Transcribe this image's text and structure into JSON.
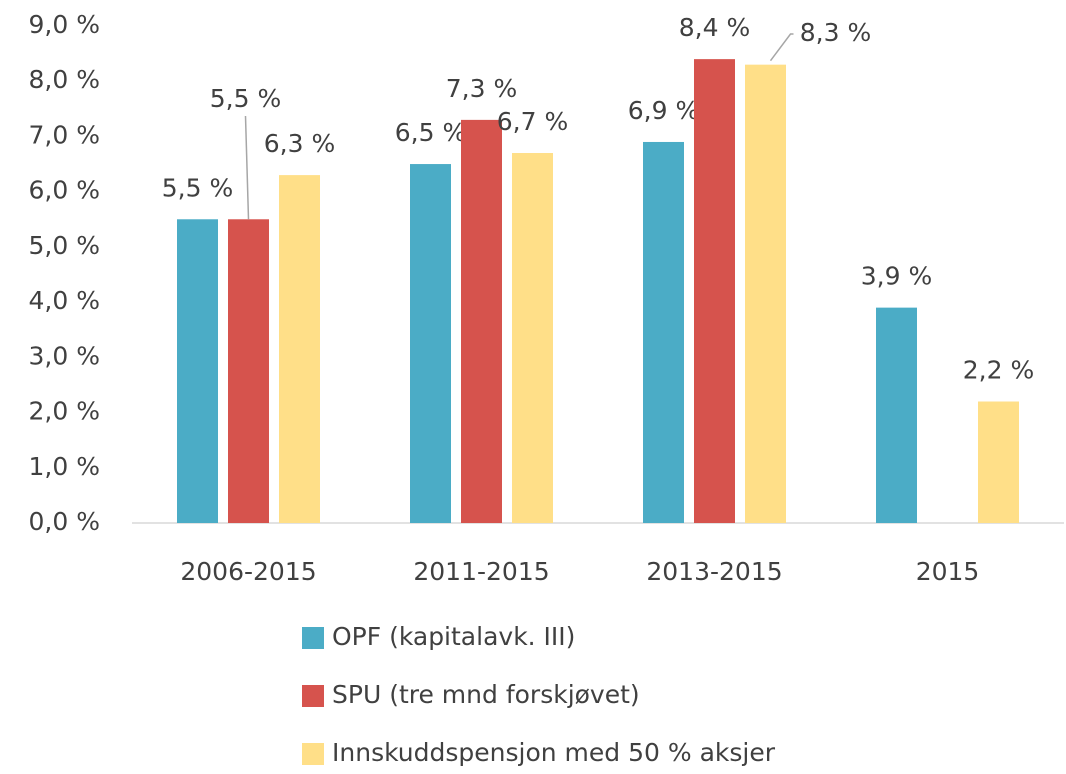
{
  "chart_data": {
    "type": "bar",
    "categories": [
      "2006-2015",
      "2011-2015",
      "2013-2015",
      "2015"
    ],
    "series": [
      {
        "name": "OPF (kapitalavk. III)",
        "color": "#4bacc6",
        "values": [
          5.5,
          6.5,
          6.9,
          3.9
        ],
        "value_labels": [
          "5,5 %",
          "6,5 %",
          "6,9 %",
          "3,9 %"
        ]
      },
      {
        "name": "SPU (tre mnd forskjøvet)",
        "color": "#d6534d",
        "values": [
          5.5,
          7.3,
          8.4,
          null
        ],
        "value_labels": [
          "5,5 %",
          "7,3 %",
          "8,4 %",
          null
        ]
      },
      {
        "name": "Innskuddspensjon med 50 % aksjer",
        "color": "#ffdf88",
        "values": [
          6.3,
          6.7,
          8.3,
          2.2
        ],
        "value_labels": [
          "6,3 %",
          "6,7 %",
          "8,3 %",
          "2,2 %"
        ]
      }
    ],
    "ylim": [
      0,
      9
    ],
    "yticks": [
      {
        "value": 0,
        "label": "0,0 %"
      },
      {
        "value": 1,
        "label": "1,0 %"
      },
      {
        "value": 2,
        "label": "2,0 %"
      },
      {
        "value": 3,
        "label": "3,0 %"
      },
      {
        "value": 4,
        "label": "4,0 %"
      },
      {
        "value": 5,
        "label": "5,0 %"
      },
      {
        "value": 6,
        "label": "6,0 %"
      },
      {
        "value": 7,
        "label": "7,0 %"
      },
      {
        "value": 8,
        "label": "8,0 %"
      },
      {
        "value": 9,
        "label": "9,0 %"
      }
    ],
    "grid": false,
    "legend": "bottom"
  }
}
